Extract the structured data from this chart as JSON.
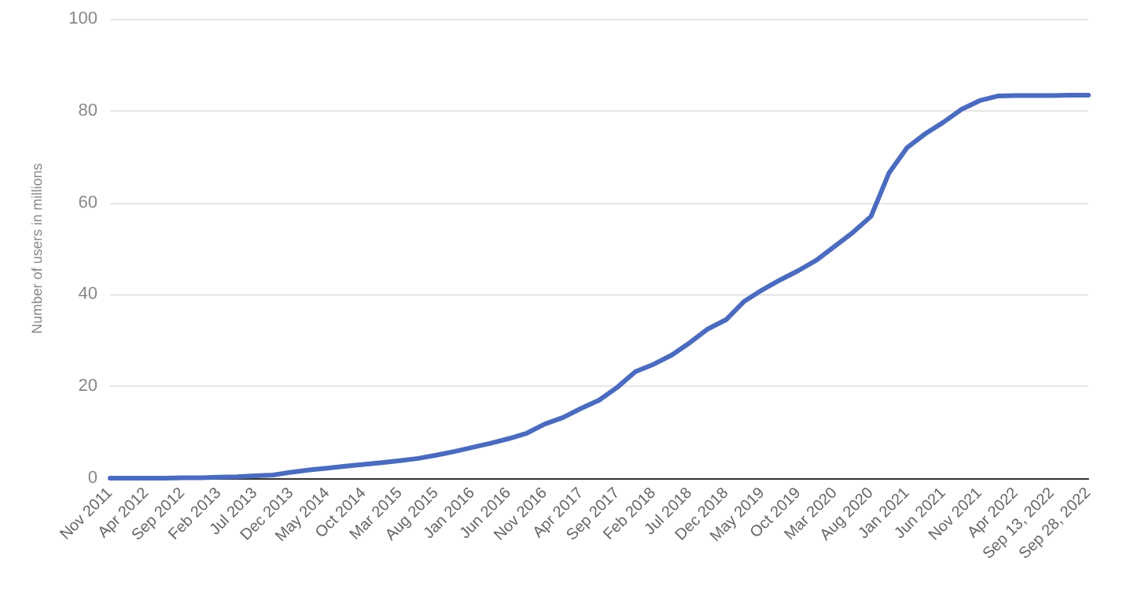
{
  "chart_data": {
    "type": "line",
    "ylabel": "Number of users in millions",
    "categories": [
      "Nov 2011",
      null,
      "Apr 2012",
      null,
      "Sep 2012",
      null,
      "Feb 2013",
      null,
      "Jul 2013",
      null,
      "Dec 2013",
      null,
      "May 2014",
      null,
      "Oct 2014",
      null,
      "Mar 2015",
      null,
      "Aug 2015",
      null,
      "Jan 2016",
      null,
      "Jun 2016",
      null,
      "Nov 2016",
      null,
      "Apr 2017",
      null,
      "Sep 2017",
      null,
      "Feb 2018",
      null,
      "Jul 2018",
      null,
      "Dec 2018",
      null,
      "May 2019",
      null,
      "Oct 2019",
      null,
      "Mar 2020",
      null,
      "Aug 2020",
      null,
      "Jan 2021",
      null,
      "Jun 2021",
      null,
      "Nov 2021",
      null,
      "Apr 2022",
      null,
      "Sep 13, 2022",
      null,
      "Sep 28, 2022"
    ],
    "series": [
      {
        "color": "#4a6bbf",
        "values": [
          0,
          0,
          0,
          0,
          0.1,
          0.1,
          0.2,
          0.3,
          0.5,
          0.7,
          1.3,
          1.8,
          2.2,
          2.6,
          3.0,
          3.4,
          3.8,
          4.3,
          5.0,
          5.8,
          6.7,
          7.6,
          8.6,
          9.8,
          11.8,
          13.2,
          15.2,
          17,
          19.8,
          23.2,
          24.8,
          26.8,
          29.5,
          32.5,
          34.5,
          38.5,
          41,
          43.2,
          45.2,
          47.5,
          50.5,
          53.5,
          57,
          66.5,
          72,
          75,
          77.5,
          80.3,
          82.2,
          83.2,
          83.3,
          83.3,
          83.3,
          83.4,
          83.4
        ]
      }
    ],
    "ylim": [
      0,
      100
    ],
    "yticks": [
      0,
      20,
      40,
      60,
      80,
      100
    ],
    "grid": "y",
    "marker": "none",
    "line_style": "solid"
  }
}
